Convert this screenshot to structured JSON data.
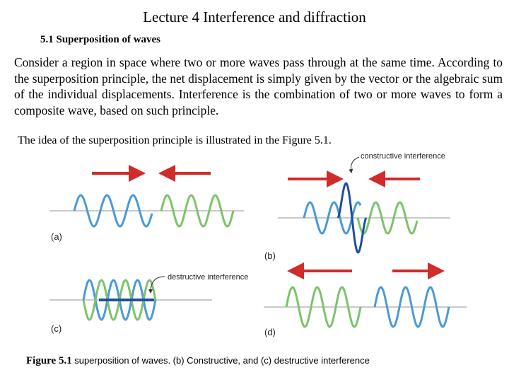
{
  "title": "Lecture 4 Interference and diffraction",
  "section": "5.1 Superposition of waves",
  "paragraph": "Consider a region in space where two or more waves pass through at the same time. According to the superposition principle, the net displacement is simply given by the vector or the algebraic sum of the individual displacements. Interference is the combination of two or more waves to form a composite wave, based on such principle.",
  "intro": "The idea of the superposition principle is illustrated in the Figure 5.1.",
  "figure": {
    "constructive_label": "constructive interference",
    "destructive_label": "destructive interference",
    "panels": [
      "(a)",
      "(b)",
      "(c)",
      "(d)"
    ]
  },
  "caption": {
    "label": "Figure 5.1",
    "text": "superposition of  waves. (b) Constructive, and (c) destructive interference"
  }
}
